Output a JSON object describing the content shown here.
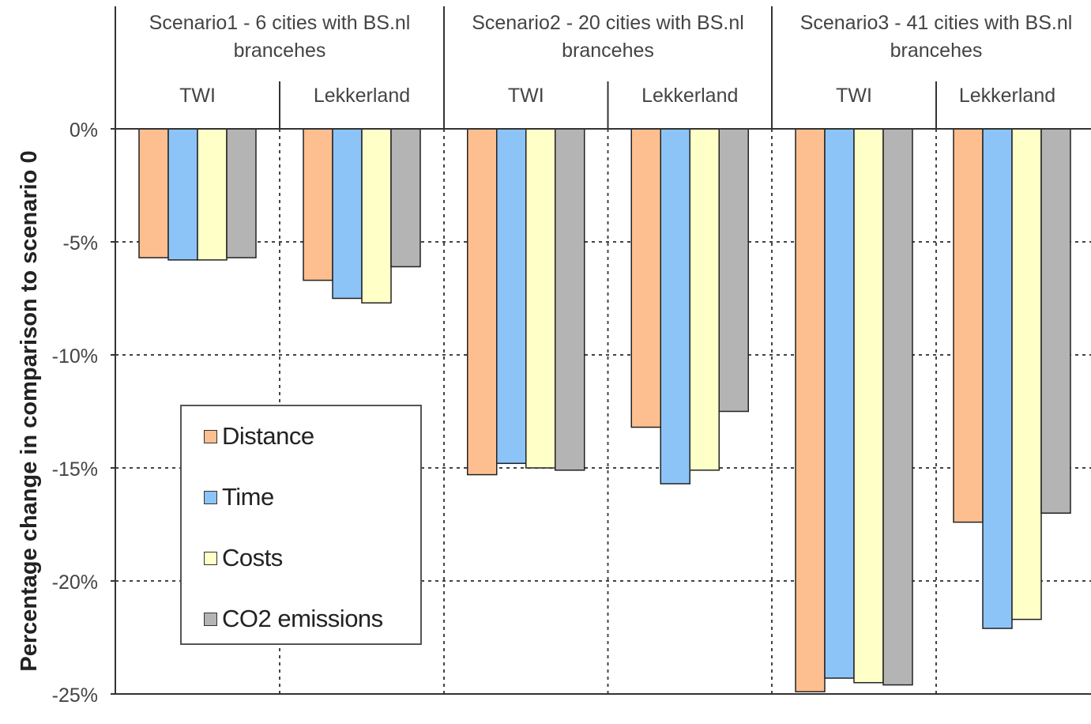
{
  "chart_data": {
    "type": "bar",
    "ylabel": "Percentage change in comparison to scenario 0",
    "ylim": [
      -25,
      0
    ],
    "yticks": [
      0,
      -5,
      -10,
      -15,
      -20,
      -25
    ],
    "ytick_labels": [
      "0%",
      "-5%",
      "-10%",
      "-15%",
      "-20%",
      "-25%"
    ],
    "grid": true,
    "legend_position": "lower-left",
    "scenarios": [
      {
        "title": "Scenario1 - 6 cities with BS.nl brancehes",
        "groups": [
          "TWI",
          "Lekkerland"
        ]
      },
      {
        "title": "Scenario2 - 20 cities with BS.nl brancehes",
        "groups": [
          "TWI",
          "Lekkerland"
        ]
      },
      {
        "title": "Scenario3 - 41 cities with BS.nl brancehes",
        "groups": [
          "TWI",
          "Lekkerland"
        ]
      }
    ],
    "categories": [
      "Scenario1 TWI",
      "Scenario1 Lekkerland",
      "Scenario2 TWI",
      "Scenario2 Lekkerland",
      "Scenario3 TWI",
      "Scenario3 Lekkerland"
    ],
    "series": [
      {
        "name": "Distance",
        "color": "#FDBF8F",
        "values": [
          -5.7,
          -6.7,
          -15.3,
          -13.2,
          -24.9,
          -17.4
        ]
      },
      {
        "name": "Time",
        "color": "#8CC4F8",
        "values": [
          -5.8,
          -7.5,
          -14.8,
          -15.7,
          -24.3,
          -22.1
        ]
      },
      {
        "name": "Costs",
        "color": "#FFFFC8",
        "values": [
          -5.8,
          -7.7,
          -15.0,
          -15.1,
          -24.5,
          -21.7
        ]
      },
      {
        "name": "CO2 emissions",
        "color": "#B4B4B4",
        "values": [
          -5.7,
          -6.1,
          -15.1,
          -12.5,
          -24.6,
          -17.0
        ]
      }
    ]
  }
}
